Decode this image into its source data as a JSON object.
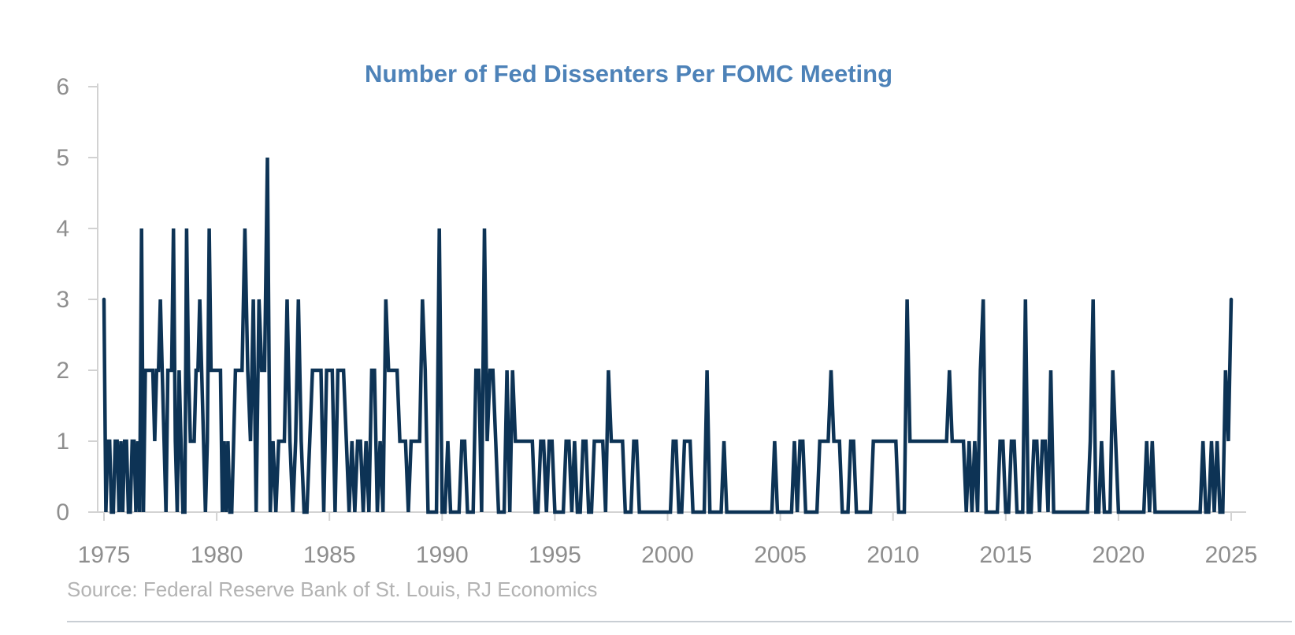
{
  "page": {
    "background": "#ffffff"
  },
  "header": {
    "title": "Number of Fed Dissenters Per FOMC Meeting",
    "title_color": "#4d82b8"
  },
  "footer": {
    "source": "Source: Federal Reserve Bank of St. Louis, RJ Economics",
    "source_color": "#b3b3b3"
  },
  "chart_data": {
    "type": "line",
    "title": "Number of Fed Dissenters Per FOMC Meeting",
    "xlabel": "",
    "ylabel": "",
    "xlim": [
      1975,
      2025
    ],
    "ylim": [
      0,
      6
    ],
    "x_ticks": [
      1975,
      1980,
      1985,
      1990,
      1995,
      2000,
      2005,
      2010,
      2015,
      2020,
      2025
    ],
    "y_ticks": [
      0,
      1,
      2,
      3,
      4,
      5,
      6
    ],
    "grid": false,
    "legend": false,
    "line_color": "#0d3355",
    "axis_color": "#d2d2d2",
    "tick_label_color": "#8e8e8e",
    "x_unit": "year; FOMC meetings within each year are evenly spaced",
    "y_unit": "number of dissenting votes at each FOMC meeting",
    "series_by_year": {
      "1975": [
        3,
        0,
        1,
        1,
        0,
        0,
        1,
        1,
        0,
        1,
        0,
        1
      ],
      "1976": [
        1,
        0,
        0,
        1,
        1,
        0,
        1,
        0,
        4,
        0,
        2,
        2
      ],
      "1977": [
        2,
        2,
        2,
        1,
        2,
        2,
        3,
        2,
        1,
        0,
        2,
        2
      ],
      "1978": [
        2,
        4,
        1,
        0,
        2,
        1,
        0,
        0,
        4,
        2,
        1,
        1
      ],
      "1979": [
        1,
        2,
        2,
        3,
        2,
        1,
        0,
        1,
        4,
        2,
        2,
        2
      ],
      "1980": [
        2,
        2,
        2,
        0,
        1,
        0,
        1,
        0,
        0,
        1,
        2,
        2
      ],
      "1981": [
        2,
        2,
        4,
        2,
        1,
        3,
        0,
        3
      ],
      "1982": [
        2,
        2,
        5,
        0,
        1,
        0,
        1,
        1
      ],
      "1983": [
        1,
        3,
        1,
        0,
        1,
        3,
        1,
        0
      ],
      "1984": [
        0,
        1,
        2,
        2,
        2,
        2,
        0,
        2
      ],
      "1985": [
        2,
        2,
        0,
        2,
        2,
        2,
        1,
        0
      ],
      "1986": [
        1,
        0,
        1,
        1,
        0,
        1,
        0,
        2
      ],
      "1987": [
        2,
        0,
        1,
        0,
        3,
        2,
        2,
        2
      ],
      "1988": [
        2,
        1,
        1,
        1,
        0,
        1,
        1,
        1
      ],
      "1989": [
        1,
        3,
        2,
        0,
        0,
        0,
        0,
        4
      ],
      "1990": [
        0,
        0,
        1,
        0,
        0,
        0,
        0,
        1
      ],
      "1991": [
        1,
        0,
        0,
        0,
        2,
        2,
        0,
        4
      ],
      "1992": [
        1,
        2,
        2,
        1,
        0,
        0,
        0,
        2
      ],
      "1993": [
        0,
        2,
        1,
        1,
        1,
        1,
        1,
        1
      ],
      "1994": [
        1,
        0,
        0,
        1,
        1,
        0,
        1,
        1
      ],
      "1995": [
        0,
        0,
        0,
        0,
        1,
        1,
        0,
        1
      ],
      "1996": [
        0,
        0,
        1,
        1,
        0,
        0,
        1,
        1
      ],
      "1997": [
        1,
        1,
        0,
        2,
        1,
        1,
        1,
        1
      ],
      "1998": [
        1,
        0,
        0,
        0,
        1,
        1,
        0,
        0
      ],
      "1999": [
        0,
        0,
        0,
        0,
        0,
        0,
        0,
        0
      ],
      "2000": [
        0,
        0,
        1,
        1,
        0,
        0,
        1,
        1
      ],
      "2001": [
        1,
        0,
        0,
        0,
        0,
        0,
        2,
        0
      ],
      "2002": [
        0,
        0,
        0,
        0,
        1,
        0,
        0,
        0
      ],
      "2003": [
        0,
        0,
        0,
        0,
        0,
        0,
        0,
        0
      ],
      "2004": [
        0,
        0,
        0,
        0,
        0,
        0,
        1,
        0
      ],
      "2005": [
        0,
        0,
        0,
        0,
        0,
        1,
        0,
        1
      ],
      "2006": [
        1,
        0,
        0,
        0,
        0,
        0,
        1,
        1
      ],
      "2007": [
        1,
        1,
        2,
        1,
        1,
        1,
        0,
        0
      ],
      "2008": [
        0,
        1,
        1,
        0,
        0,
        0,
        0,
        0
      ],
      "2009": [
        0,
        1,
        1,
        1,
        1,
        1,
        1,
        1
      ],
      "2010": [
        1,
        1,
        0,
        0,
        0,
        3,
        1,
        1
      ],
      "2011": [
        1,
        1,
        1,
        1,
        1,
        1,
        1,
        1
      ],
      "2012": [
        1,
        1,
        1,
        1,
        2,
        1,
        1,
        1
      ],
      "2013": [
        1,
        1,
        0,
        1,
        0,
        1,
        0,
        2
      ],
      "2014": [
        3,
        0,
        0,
        0,
        0,
        0,
        1,
        1
      ],
      "2015": [
        0,
        0,
        1,
        1,
        0,
        0,
        0,
        3
      ],
      "2016": [
        0,
        0,
        1,
        1,
        0,
        1,
        1,
        0
      ],
      "2017": [
        2,
        0,
        0,
        0,
        0,
        0,
        0,
        0
      ],
      "2018": [
        0,
        0,
        0,
        0,
        0,
        0,
        1,
        3
      ],
      "2019": [
        0,
        0,
        1,
        0,
        0,
        0,
        2,
        1
      ],
      "2020": [
        0,
        0,
        0,
        0,
        0,
        0,
        0,
        0
      ],
      "2021": [
        0,
        0,
        1,
        0,
        1,
        0,
        0,
        0
      ],
      "2022": [
        0,
        0,
        0,
        0,
        0,
        0,
        0,
        0
      ],
      "2023": [
        0,
        0,
        0,
        0,
        0,
        0,
        1,
        0
      ],
      "2024": [
        0,
        1,
        0,
        1,
        0,
        0,
        2,
        1
      ],
      "2025": [
        3
      ]
    }
  }
}
